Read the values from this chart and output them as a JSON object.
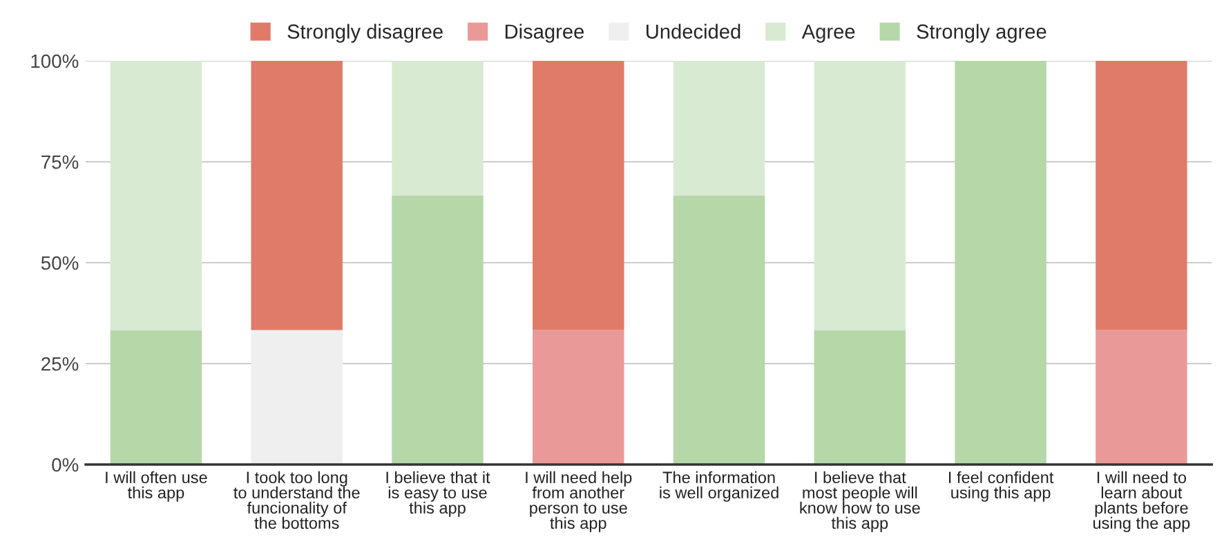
{
  "chart_data": {
    "type": "bar",
    "stacked": true,
    "categories": [
      "I will often use this app",
      "I took too long to understand the funcionality of the bottoms",
      "I believe that it is easy to use this app",
      "I will need help from another person to use this app",
      "The information is well organized",
      "I believe that most people will know how to use this app",
      "I feel confident using this app",
      "I will need to learn about plants before using the app"
    ],
    "series": [
      {
        "name": "Strongly agree",
        "color": "#b6d7a8",
        "values": [
          33.3,
          null,
          66.7,
          null,
          66.7,
          33.3,
          100,
          null
        ]
      },
      {
        "name": "Agree",
        "color": "#d9ead3",
        "values": [
          66.7,
          null,
          33.3,
          null,
          33.3,
          66.7,
          null,
          null
        ]
      },
      {
        "name": "Undecided",
        "color": "#efefef",
        "values": [
          null,
          33.3,
          null,
          null,
          null,
          null,
          null,
          null
        ]
      },
      {
        "name": "Disagree",
        "color": "#ea9999",
        "values": [
          null,
          null,
          null,
          33.3,
          null,
          null,
          null,
          33.3
        ]
      },
      {
        "name": "Strongly disagree",
        "color": "#e07b6a",
        "values": [
          null,
          66.7,
          null,
          66.7,
          null,
          null,
          null,
          66.7
        ]
      }
    ],
    "ylim": [
      0,
      100
    ],
    "yticks": [
      {
        "value": 0,
        "label": "0%"
      },
      {
        "value": 25,
        "label": "25%"
      },
      {
        "value": 50,
        "label": "50%"
      },
      {
        "value": 75,
        "label": "75%"
      },
      {
        "value": 100,
        "label": "100%"
      }
    ],
    "grid": "y",
    "legend": "top"
  }
}
